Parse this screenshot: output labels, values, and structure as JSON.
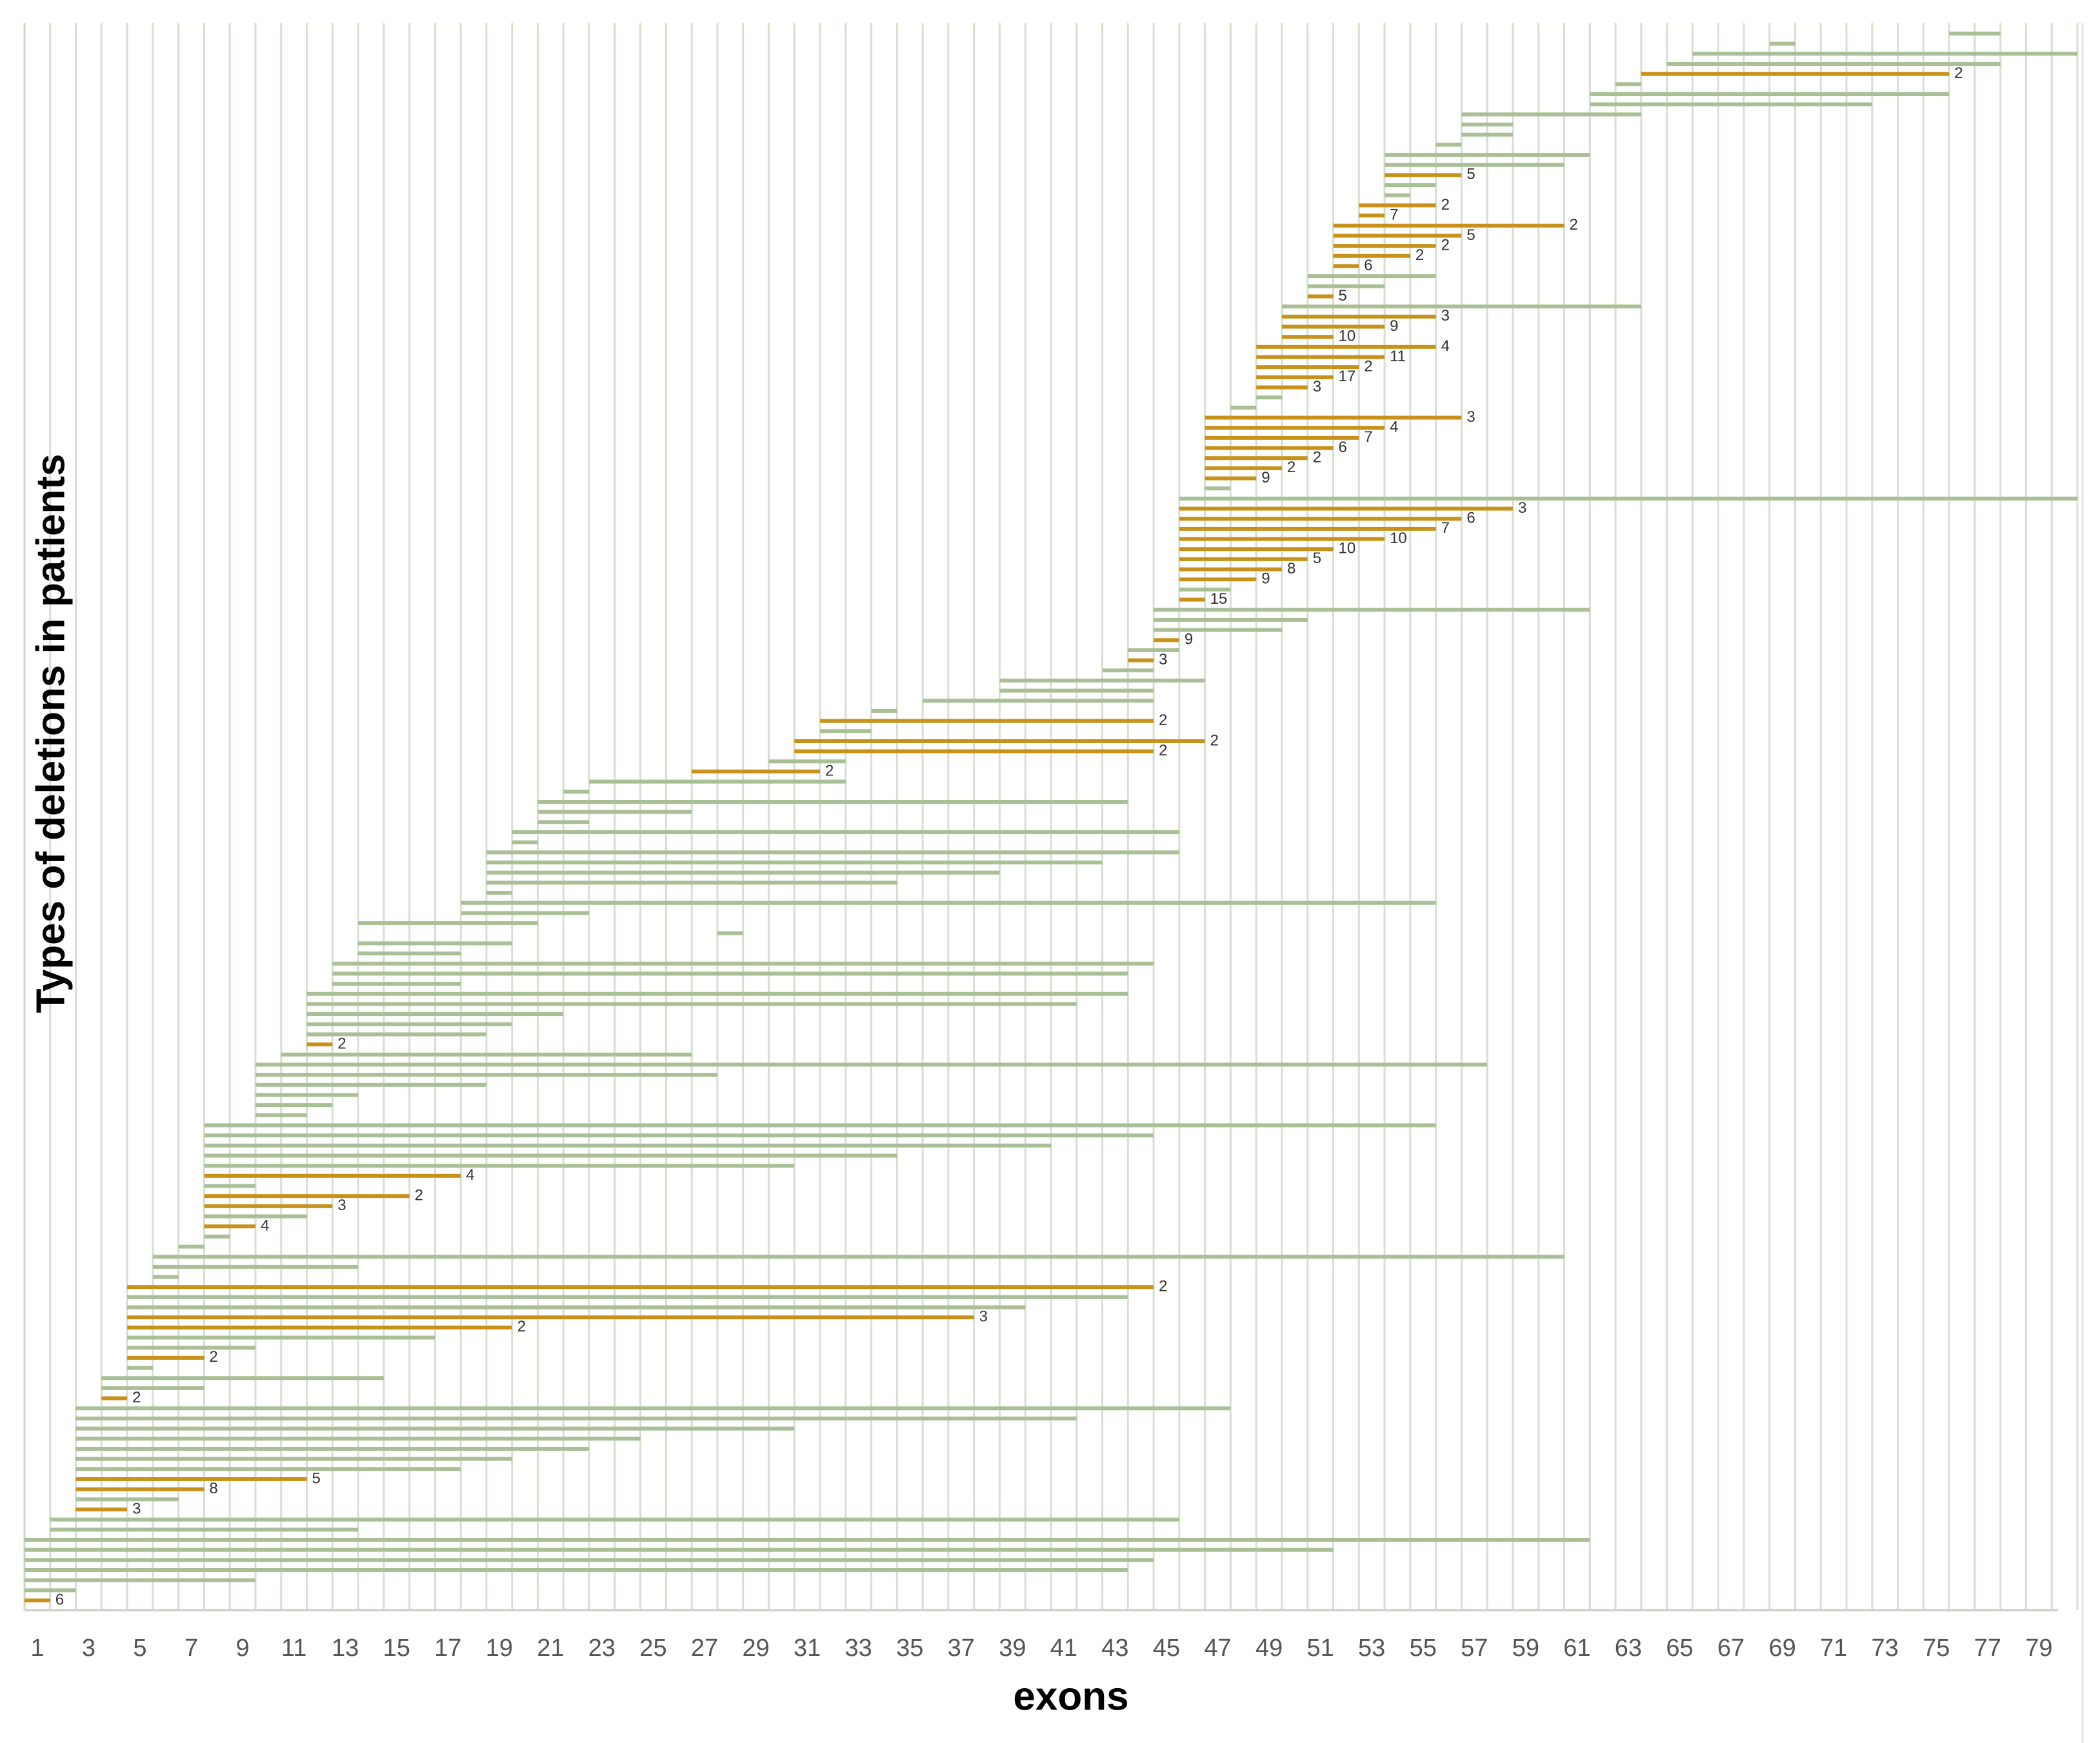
{
  "chart_data": {
    "type": "range",
    "xlabel": "exons",
    "ylabel": "Types of deletions in patients",
    "xlim": [
      0.5,
      80.5
    ],
    "xticks": [
      1,
      3,
      5,
      7,
      9,
      11,
      13,
      15,
      17,
      19,
      21,
      23,
      25,
      27,
      29,
      31,
      33,
      35,
      37,
      39,
      41,
      43,
      45,
      47,
      49,
      51,
      53,
      55,
      57,
      59,
      61,
      63,
      65,
      67,
      69,
      71,
      73,
      75,
      77,
      79
    ],
    "color": "#a9bf96",
    "highlight_color": "#c8921a",
    "start": [
      76,
      69,
      66,
      65,
      64,
      63,
      62,
      62,
      57,
      57,
      57,
      56,
      54,
      54,
      54,
      54,
      54,
      53,
      53,
      52,
      52,
      52,
      52,
      52,
      51,
      51,
      51,
      50,
      50,
      50,
      50,
      49,
      49,
      49,
      49,
      49,
      49,
      48,
      47,
      47,
      47,
      47,
      47,
      47,
      47,
      47,
      46,
      46,
      46,
      46,
      46,
      46,
      46,
      46,
      46,
      46,
      46,
      45,
      45,
      45,
      45,
      44,
      44,
      43,
      39,
      39,
      36,
      34,
      32,
      32,
      31,
      31,
      30,
      27,
      23,
      22,
      21,
      21,
      21,
      20,
      20,
      19,
      19,
      19,
      19,
      19,
      18,
      18,
      14,
      28,
      14,
      14,
      13,
      13,
      13,
      12,
      12,
      12,
      12,
      12,
      12,
      11,
      10,
      10,
      10,
      10,
      10,
      10,
      8,
      8,
      8,
      8,
      8,
      8,
      8,
      8,
      8,
      8,
      8,
      8,
      7,
      6,
      6,
      6,
      5,
      5,
      5,
      5,
      5,
      5,
      5,
      5,
      5,
      4,
      4,
      4,
      3,
      3,
      3,
      3,
      3,
      3,
      3,
      3,
      3,
      3,
      3,
      2,
      2,
      1,
      1,
      1,
      1,
      1,
      1,
      1
    ],
    "end": [
      77,
      69,
      80,
      77,
      75,
      63,
      75,
      72,
      63,
      58,
      58,
      56,
      61,
      60,
      56,
      55,
      54,
      55,
      53,
      60,
      56,
      55,
      54,
      52,
      55,
      53,
      51,
      63,
      55,
      53,
      51,
      55,
      53,
      52,
      51,
      50,
      49,
      48,
      56,
      53,
      52,
      51,
      50,
      49,
      48,
      47,
      80,
      58,
      56,
      55,
      53,
      51,
      50,
      49,
      48,
      47,
      46,
      61,
      50,
      49,
      45,
      45,
      44,
      44,
      46,
      44,
      44,
      34,
      44,
      33,
      46,
      44,
      32,
      31,
      32,
      22,
      43,
      26,
      22,
      45,
      20,
      45,
      42,
      38,
      34,
      19,
      55,
      22,
      20,
      28,
      19,
      17,
      44,
      43,
      17,
      43,
      41,
      21,
      19,
      18,
      12,
      26,
      57,
      27,
      18,
      13,
      12,
      11,
      55,
      44,
      40,
      34,
      30,
      17,
      9,
      15,
      12,
      11,
      9,
      8,
      7,
      60,
      13,
      6,
      44,
      43,
      39,
      37,
      19,
      16,
      9,
      7,
      5,
      14,
      7,
      4,
      47,
      41,
      30,
      24,
      22,
      19,
      17,
      11,
      7,
      6,
      4,
      45,
      13,
      61,
      51,
      44,
      43,
      9,
      2,
      1
    ],
    "counts": [
      null,
      null,
      null,
      null,
      2,
      null,
      null,
      null,
      null,
      null,
      null,
      null,
      null,
      null,
      5,
      null,
      null,
      2,
      7,
      2,
      5,
      2,
      2,
      6,
      null,
      null,
      5,
      null,
      3,
      9,
      10,
      4,
      11,
      2,
      17,
      3,
      null,
      null,
      3,
      4,
      7,
      6,
      2,
      2,
      9,
      null,
      null,
      3,
      6,
      7,
      10,
      10,
      5,
      8,
      9,
      null,
      15,
      null,
      null,
      null,
      9,
      null,
      3,
      null,
      null,
      null,
      null,
      null,
      2,
      null,
      2,
      2,
      null,
      2,
      null,
      null,
      null,
      null,
      null,
      null,
      null,
      null,
      null,
      null,
      null,
      null,
      null,
      null,
      null,
      null,
      null,
      null,
      null,
      null,
      null,
      null,
      null,
      null,
      null,
      null,
      2,
      null,
      null,
      null,
      null,
      null,
      null,
      null,
      null,
      null,
      null,
      null,
      null,
      4,
      null,
      2,
      3,
      null,
      4,
      null,
      null,
      null,
      null,
      null,
      2,
      null,
      null,
      3,
      2,
      null,
      null,
      2,
      null,
      null,
      null,
      2,
      null,
      null,
      null,
      null,
      null,
      null,
      null,
      5,
      8,
      null,
      3,
      null,
      null,
      null,
      null,
      null,
      null,
      null,
      null,
      6
    ]
  }
}
